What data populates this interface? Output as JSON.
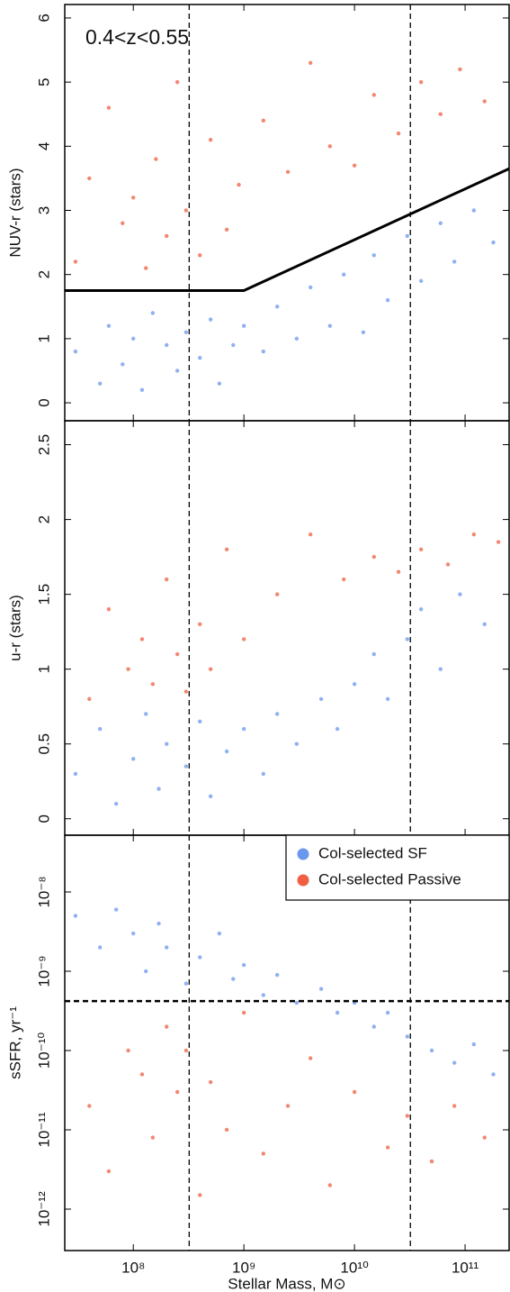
{
  "chart_data": [
    {
      "type": "scatter",
      "ylabel": "NUV-r (stars)",
      "annotation": "0.4<z<0.55",
      "ylim": [
        -0.28,
        6.21
      ],
      "yticks": [
        0,
        1,
        2,
        3,
        4,
        5,
        6
      ],
      "vlines": [
        320000000.0,
        32000000000.0
      ],
      "cut_line": {
        "x": [
          24000000.0,
          1000000000.0,
          250000000000.0
        ],
        "y": [
          1.75,
          1.75,
          3.65
        ]
      },
      "series": [
        {
          "name": "Col-selected SF",
          "color": "#6a97ee",
          "x": [
            30000000.0,
            50000000.0,
            60000000.0,
            80000000.0,
            100000000.0,
            120000000.0,
            150000000.0,
            200000000.0,
            250000000.0,
            300000000.0,
            400000000.0,
            500000000.0,
            600000000.0,
            800000000.0,
            1000000000.0,
            1500000000.0,
            2000000000.0,
            3000000000.0,
            4000000000.0,
            6000000000.0,
            8000000000.0,
            12000000000.0,
            15000000000.0,
            20000000000.0,
            30000000000.0,
            40000000000.0,
            60000000000.0,
            80000000000.0,
            120000000000.0,
            180000000000.0
          ],
          "y": [
            0.8,
            0.3,
            1.2,
            0.6,
            1.0,
            0.2,
            1.4,
            0.9,
            0.5,
            1.1,
            0.7,
            1.3,
            0.3,
            0.9,
            1.2,
            0.8,
            1.5,
            1.0,
            1.8,
            1.2,
            2.0,
            1.1,
            2.3,
            1.6,
            2.6,
            1.9,
            2.8,
            2.2,
            3.0,
            2.5
          ]
        },
        {
          "name": "Col-selected Passive",
          "color": "#ef5f42",
          "x": [
            30000000.0,
            40000000.0,
            60000000.0,
            80000000.0,
            100000000.0,
            130000000.0,
            160000000.0,
            200000000.0,
            250000000.0,
            300000000.0,
            400000000.0,
            500000000.0,
            700000000.0,
            900000000.0,
            1500000000.0,
            2500000000.0,
            4000000000.0,
            6000000000.0,
            10000000000.0,
            15000000000.0,
            25000000000.0,
            40000000000.0,
            60000000000.0,
            90000000000.0,
            150000000000.0
          ],
          "y": [
            2.2,
            3.5,
            4.6,
            2.8,
            3.2,
            2.1,
            3.8,
            2.6,
            5.0,
            3.0,
            2.3,
            4.1,
            2.7,
            3.4,
            4.4,
            3.6,
            5.3,
            4.0,
            3.7,
            4.8,
            4.2,
            5.0,
            4.5,
            5.2,
            4.7
          ]
        }
      ]
    },
    {
      "type": "scatter",
      "ylabel": "u-r (stars)",
      "ylim": [
        -0.11,
        2.66
      ],
      "yticks": [
        0,
        0.5,
        1,
        1.5,
        2,
        2.5
      ],
      "vlines": [
        320000000.0,
        32000000000.0
      ],
      "series": [
        {
          "name": "Col-selected SF",
          "color": "#6a97ee",
          "x": [
            30000000.0,
            50000000.0,
            70000000.0,
            100000000.0,
            130000000.0,
            170000000.0,
            200000000.0,
            300000000.0,
            400000000.0,
            500000000.0,
            700000000.0,
            1000000000.0,
            1500000000.0,
            2000000000.0,
            3000000000.0,
            5000000000.0,
            7000000000.0,
            10000000000.0,
            15000000000.0,
            20000000000.0,
            30000000000.0,
            40000000000.0,
            60000000000.0,
            90000000000.0,
            150000000000.0
          ],
          "y": [
            0.3,
            0.6,
            0.1,
            0.4,
            0.7,
            0.2,
            0.5,
            0.35,
            0.65,
            0.15,
            0.45,
            0.6,
            0.3,
            0.7,
            0.5,
            0.8,
            0.6,
            0.9,
            1.1,
            0.8,
            1.2,
            1.4,
            1.0,
            1.5,
            1.3
          ]
        },
        {
          "name": "Col-selected Passive",
          "color": "#ef5f42",
          "x": [
            40000000.0,
            60000000.0,
            90000000.0,
            120000000.0,
            150000000.0,
            200000000.0,
            250000000.0,
            300000000.0,
            400000000.0,
            500000000.0,
            700000000.0,
            1000000000.0,
            2000000000.0,
            4000000000.0,
            8000000000.0,
            15000000000.0,
            25000000000.0,
            40000000000.0,
            70000000000.0,
            120000000000.0,
            200000000000.0
          ],
          "y": [
            0.8,
            1.4,
            1.0,
            1.2,
            0.9,
            1.6,
            1.1,
            0.85,
            1.3,
            1.0,
            1.8,
            1.2,
            1.5,
            1.9,
            1.6,
            1.75,
            1.65,
            1.8,
            1.7,
            1.9,
            1.85
          ]
        }
      ]
    },
    {
      "type": "scatter",
      "ylabel": "sSFR, yr⁻¹",
      "xlabel": "Stellar Mass, M⊙",
      "xscale": "log",
      "xlim": [
        24000000.0,
        250000000000.0
      ],
      "xticks": [
        {
          "value": 100000000.0,
          "label": "10⁸"
        },
        {
          "value": 1000000000.0,
          "label": "10⁹"
        },
        {
          "value": 10000000000.0,
          "label": "10¹⁰"
        },
        {
          "value": 100000000000.0,
          "label": "10¹¹"
        }
      ],
      "yscale": "log",
      "ylim": [
        3e-13,
        5.2e-08
      ],
      "yticks": [
        {
          "value": 1e-08,
          "label": "10⁻⁸"
        },
        {
          "value": 1e-09,
          "label": "10⁻⁹"
        },
        {
          "value": 1e-10,
          "label": "10⁻¹⁰"
        },
        {
          "value": 1e-11,
          "label": "10⁻¹¹"
        },
        {
          "value": 1e-12,
          "label": "10⁻¹²"
        }
      ],
      "vlines": [
        320000000.0,
        32000000000.0
      ],
      "hlines": [
        4.2e-10
      ],
      "legend": "upper right",
      "series": [
        {
          "name": "Col-selected SF",
          "color": "#6a97ee",
          "x": [
            30000000.0,
            50000000.0,
            70000000.0,
            100000000.0,
            130000000.0,
            170000000.0,
            200000000.0,
            300000000.0,
            400000000.0,
            600000000.0,
            800000000.0,
            1000000000.0,
            1500000000.0,
            2000000000.0,
            3000000000.0,
            5000000000.0,
            7000000000.0,
            10000000000.0,
            15000000000.0,
            20000000000.0,
            30000000000.0,
            50000000000.0,
            80000000000.0,
            120000000000.0,
            180000000000.0
          ],
          "y": [
            5e-09,
            2e-09,
            6e-09,
            3e-09,
            1e-09,
            4e-09,
            2e-09,
            7e-10,
            1.5e-09,
            3e-09,
            8e-10,
            1.2e-09,
            5e-10,
            9e-10,
            4e-10,
            6e-10,
            3e-10,
            4e-10,
            2e-10,
            3e-10,
            1.5e-10,
            1e-10,
            7e-11,
            1.2e-10,
            5e-11
          ]
        },
        {
          "name": "Col-selected Passive",
          "color": "#ef5f42",
          "x": [
            40000000.0,
            60000000.0,
            90000000.0,
            120000000.0,
            150000000.0,
            200000000.0,
            250000000.0,
            300000000.0,
            400000000.0,
            500000000.0,
            700000000.0,
            1000000000.0,
            1500000000.0,
            2500000000.0,
            4000000000.0,
            6000000000.0,
            10000000000.0,
            20000000000.0,
            30000000000.0,
            50000000000.0,
            80000000000.0,
            150000000000.0
          ],
          "y": [
            2e-11,
            3e-12,
            1e-10,
            5e-11,
            8e-12,
            2e-10,
            3e-11,
            1e-10,
            1.5e-12,
            4e-11,
            1e-11,
            3e-10,
            5e-12,
            2e-11,
            8e-11,
            2e-12,
            3e-11,
            6e-12,
            1.5e-11,
            4e-12,
            2e-11,
            8e-12
          ]
        }
      ]
    }
  ]
}
